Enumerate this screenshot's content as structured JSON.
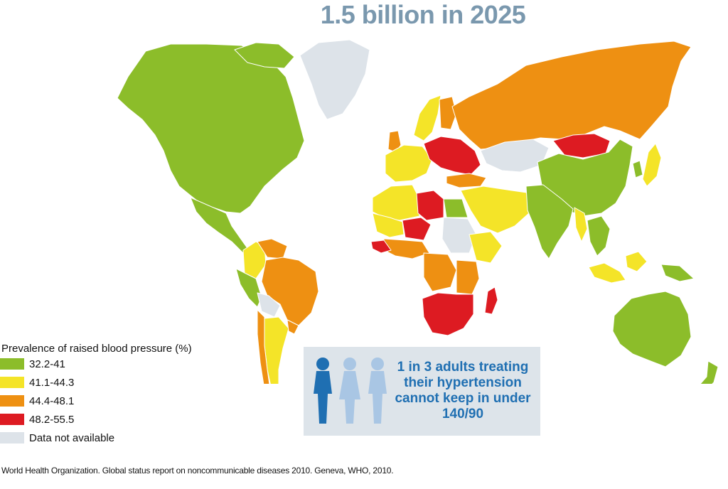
{
  "title": "1.5 billion in 2025",
  "legend": {
    "title": "Prevalence of raised blood pressure (%)",
    "items": [
      {
        "label": "32.2-41",
        "color": "#8cbd2a"
      },
      {
        "label": "41.1-44.3",
        "color": "#f4e428"
      },
      {
        "label": "44.4-48.1",
        "color": "#ee9012"
      },
      {
        "label": "48.2-55.5",
        "color": "#dd1b22"
      },
      {
        "label": "Data not available",
        "color": "#dde3e9"
      }
    ]
  },
  "callout": {
    "text": "1 in 3 adults treating their hypertension cannot keep in under 140/90",
    "figures": [
      {
        "icon": "man-icon",
        "color": "#1f6fb2"
      },
      {
        "icon": "woman-icon",
        "color": "#a9c6e4"
      },
      {
        "icon": "man-icon",
        "color": "#a9c6e4"
      }
    ]
  },
  "source": "World Health Organization. Global status report on noncommunicable diseases 2010. Geneva, WHO, 2010.",
  "regions": [
    {
      "region": "North America",
      "category": "32.2-41"
    },
    {
      "region": "Greenland",
      "category": "Data not available"
    },
    {
      "region": "Central America",
      "category": "32.2-41"
    },
    {
      "region": "Colombia",
      "category": "41.1-44.3"
    },
    {
      "region": "Peru",
      "category": "32.2-41"
    },
    {
      "region": "Venezuela",
      "category": "44.4-48.1"
    },
    {
      "region": "Brazil",
      "category": "44.4-48.1"
    },
    {
      "region": "Bolivia",
      "category": "Data not available"
    },
    {
      "region": "Argentina",
      "category": "41.1-44.3"
    },
    {
      "region": "Chile",
      "category": "44.4-48.1"
    },
    {
      "region": "Uruguay",
      "category": "44.4-48.1"
    },
    {
      "region": "Scandinavia",
      "category": "41.1-44.3"
    },
    {
      "region": "Finland",
      "category": "44.4-48.1"
    },
    {
      "region": "United Kingdom",
      "category": "44.4-48.1"
    },
    {
      "region": "Western Europe",
      "category": "41.1-44.3"
    },
    {
      "region": "Eastern Europe",
      "category": "48.2-55.5"
    },
    {
      "region": "Turkey",
      "category": "44.4-48.1"
    },
    {
      "region": "Russia",
      "category": "44.4-48.1"
    },
    {
      "region": "Kazakhstan",
      "category": "Data not available"
    },
    {
      "region": "Mongolia",
      "category": "48.2-55.5"
    },
    {
      "region": "China",
      "category": "32.2-41"
    },
    {
      "region": "Japan",
      "category": "41.1-44.3"
    },
    {
      "region": "Korea",
      "category": "32.2-41"
    },
    {
      "region": "Middle East",
      "category": "41.1-44.3"
    },
    {
      "region": "South Asia",
      "category": "32.2-41"
    },
    {
      "region": "Myanmar",
      "category": "41.1-44.3"
    },
    {
      "region": "Southeast Asia",
      "category": "32.2-41"
    },
    {
      "region": "Indonesia",
      "category": "41.1-44.3"
    },
    {
      "region": "Papua New Guinea",
      "category": "32.2-41"
    },
    {
      "region": "Australia",
      "category": "32.2-41"
    },
    {
      "region": "New Zealand",
      "category": "32.2-41"
    },
    {
      "region": "Algeria",
      "category": "41.1-44.3"
    },
    {
      "region": "Libya",
      "category": "48.2-55.5"
    },
    {
      "region": "Egypt",
      "category": "32.2-41"
    },
    {
      "region": "Mali",
      "category": "41.1-44.3"
    },
    {
      "region": "Niger",
      "category": "48.2-55.5"
    },
    {
      "region": "West Africa",
      "category": "44.4-48.1"
    },
    {
      "region": "Sierra Leone",
      "category": "48.2-55.5"
    },
    {
      "region": "Sudan",
      "category": "Data not available"
    },
    {
      "region": "Horn of Africa",
      "category": "41.1-44.3"
    },
    {
      "region": "Central Africa",
      "category": "44.4-48.1"
    },
    {
      "region": "East Africa",
      "category": "44.4-48.1"
    },
    {
      "region": "Southern Africa",
      "category": "48.2-55.5"
    },
    {
      "region": "Madagascar",
      "category": "48.2-55.5"
    }
  ]
}
